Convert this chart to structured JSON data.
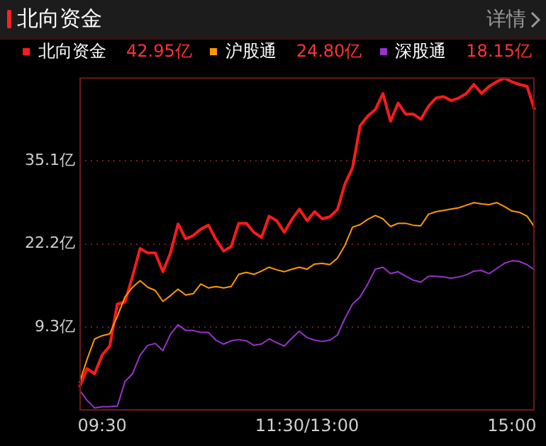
{
  "chart_data": {
    "type": "line",
    "title": "北向资金",
    "annotations": [
      "详情",
      "42.95亿",
      "24.80亿",
      "18.15亿"
    ],
    "legend": "top",
    "grid": "y",
    "marker": "none",
    "line_style": "solid",
    "categories": [
      null,
      null,
      null,
      "09:30",
      null,
      null,
      null,
      null,
      null,
      null,
      null,
      null,
      null,
      null,
      null,
      null,
      null,
      null,
      null,
      null,
      null,
      null,
      null,
      null,
      null,
      null,
      null,
      null,
      null,
      null,
      "11:30/13:00",
      null,
      null,
      null,
      null,
      null,
      null,
      null,
      null,
      null,
      null,
      null,
      null,
      null,
      null,
      null,
      null,
      null,
      null,
      null,
      null,
      null,
      null,
      null,
      null,
      null,
      null,
      "15:00",
      null,
      null,
      null
    ],
    "ylim": [
      -3.6,
      48.0
    ],
    "yticks": [
      {
        "value": 9.3,
        "label": "9.3亿"
      },
      {
        "value": 22.2,
        "label": "22.2亿"
      },
      {
        "value": 35.1,
        "label": "35.1亿"
      }
    ],
    "series": [
      {
        "name": "北向资金",
        "color": "#ff1a1a",
        "values": [
          0.0,
          2.9,
          2.1,
          5.0,
          6.4,
          12.9,
          13.2,
          17.2,
          21.5,
          20.8,
          20.8,
          17.9,
          20.8,
          25.3,
          23.0,
          23.5,
          24.5,
          25.1,
          22.9,
          21.1,
          21.8,
          25.4,
          25.4,
          24.0,
          23.2,
          26.5,
          25.8,
          24.0,
          26.0,
          27.6,
          25.8,
          27.2,
          26.1,
          26.4,
          27.5,
          31.5,
          34.0,
          40.5,
          42.0,
          43.0,
          45.5,
          41.2,
          44.0,
          42.3,
          42.3,
          41.5,
          43.5,
          44.8,
          45.0,
          44.4,
          44.8,
          45.5,
          46.9,
          45.5,
          46.6,
          47.3,
          47.9,
          47.3,
          46.9,
          46.6,
          42.95
        ]
      },
      {
        "name": "沪股通",
        "color": "#ff9900",
        "values": [
          0.7,
          4.3,
          7.5,
          8.0,
          8.3,
          11.0,
          14.0,
          15.5,
          16.5,
          15.5,
          15.0,
          13.3,
          14.2,
          15.2,
          14.3,
          14.5,
          16.0,
          15.4,
          15.6,
          15.4,
          15.6,
          17.5,
          17.8,
          17.5,
          18.0,
          18.6,
          18.2,
          17.9,
          18.3,
          18.6,
          18.3,
          19.1,
          19.2,
          19.0,
          20.0,
          22.0,
          24.8,
          25.2,
          26.0,
          26.6,
          26.1,
          24.9,
          25.4,
          25.4,
          25.1,
          25.0,
          26.8,
          27.2,
          27.4,
          27.6,
          27.8,
          28.2,
          28.6,
          28.4,
          28.3,
          28.6,
          28.0,
          27.3,
          27.1,
          26.5,
          24.8
        ]
      },
      {
        "name": "深股通",
        "color": "#9933cc",
        "values": [
          -0.4,
          -2.0,
          -3.2,
          -3.0,
          -3.0,
          -2.9,
          0.9,
          2.1,
          5.0,
          6.5,
          6.8,
          5.7,
          8.2,
          9.7,
          8.8,
          8.8,
          8.5,
          8.5,
          7.3,
          6.7,
          7.2,
          7.4,
          7.2,
          6.5,
          6.7,
          7.5,
          6.9,
          6.4,
          7.6,
          8.7,
          7.7,
          7.3,
          7.1,
          7.3,
          8.1,
          10.7,
          12.9,
          14.0,
          16.0,
          18.3,
          18.6,
          17.6,
          17.9,
          17.2,
          16.6,
          16.3,
          17.2,
          17.2,
          17.1,
          16.9,
          17.1,
          17.4,
          18.0,
          18.1,
          17.6,
          18.4,
          19.2,
          19.6,
          19.5,
          19.0,
          18.15
        ]
      }
    ]
  }
}
